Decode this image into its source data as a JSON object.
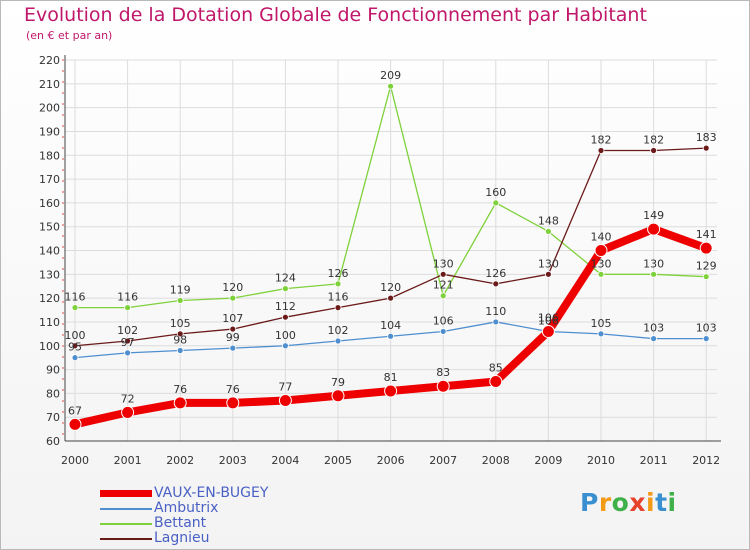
{
  "header": {
    "title": "Evolution de la Dotation Globale de Fonctionnement par Habitant",
    "subtitle": "(en € et par an)"
  },
  "logo": {
    "text": "Proxiti",
    "letters": [
      "P",
      "r",
      "o",
      "x",
      "i",
      "t",
      "i"
    ]
  },
  "chart_data": {
    "type": "line",
    "title": "Evolution de la Dotation Globale de Fonctionnement par Habitant",
    "subtitle": "(en € et par an)",
    "x": [
      "2000",
      "2001",
      "2002",
      "2003",
      "2004",
      "2005",
      "2006",
      "2007",
      "2008",
      "2009",
      "2010",
      "2011",
      "2012"
    ],
    "ylim": [
      60,
      220
    ],
    "yticks": [
      60,
      70,
      80,
      90,
      100,
      110,
      120,
      130,
      140,
      150,
      160,
      170,
      180,
      190,
      200,
      210,
      220
    ],
    "grid": true,
    "legend_position": "bottom-left",
    "series": [
      {
        "name": "VAUX-EN-BUGEY",
        "color": "#ee0000",
        "values": [
          67,
          72,
          76,
          76,
          77,
          79,
          81,
          83,
          85,
          106,
          140,
          149,
          141
        ]
      },
      {
        "name": "Ambutrix",
        "color": "#4f8fd0",
        "values": [
          95,
          97,
          98,
          99,
          100,
          102,
          104,
          106,
          110,
          106,
          105,
          103,
          103
        ]
      },
      {
        "name": "Bettant",
        "color": "#7fd13b",
        "values": [
          116,
          116,
          119,
          120,
          124,
          126,
          209,
          121,
          160,
          148,
          130,
          130,
          129
        ]
      },
      {
        "name": "Lagnieu",
        "color": "#6b1a1a",
        "values": [
          100,
          102,
          105,
          107,
          112,
          116,
          120,
          130,
          126,
          130,
          182,
          182,
          183
        ]
      }
    ]
  }
}
